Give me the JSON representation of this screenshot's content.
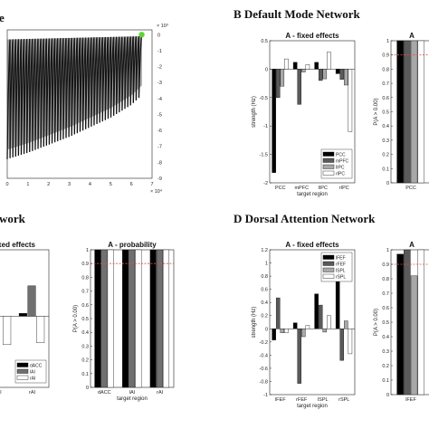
{
  "sections": {
    "A_tail": "e",
    "B": "B  Default Mode Network",
    "C_tail": "work",
    "D": "D  Dorsal Attention Network"
  },
  "chart_data": [
    {
      "id": "trace",
      "type": "line",
      "title": "",
      "x_multiplier": "× 10⁴",
      "y_multiplier": "× 10³",
      "xticks": [
        "0",
        "1",
        "2",
        "3",
        "4",
        "5",
        "6",
        "7"
      ],
      "yticks": [
        "0",
        "-1",
        "-2",
        "-3",
        "-4",
        "-5",
        "-6",
        "-7",
        "-8",
        "-9"
      ],
      "xlim": [
        0,
        7
      ],
      "ylim": [
        -9,
        0.3
      ],
      "upper_envelope": [
        [
          0,
          -0.3
        ],
        [
          6.5,
          -0.1
        ]
      ],
      "lower_envelope": [
        [
          0,
          -7.8
        ],
        [
          1,
          -7.4
        ],
        [
          2,
          -6.9
        ],
        [
          3,
          -6.4
        ],
        [
          4,
          -5.8
        ],
        [
          5,
          -5.2
        ],
        [
          6,
          -4.4
        ],
        [
          6.5,
          -3.8
        ]
      ],
      "oscillation_count": 48,
      "end_marker": {
        "x": 6.5,
        "y": 0.0,
        "color": "#5cd62e"
      }
    },
    {
      "id": "B_fixed",
      "type": "bar",
      "title": "A - fixed effects",
      "xlabel": "target region",
      "ylabel": "strength (Hz)",
      "categories": [
        "PCC",
        "mPFC",
        "lIPC",
        "rIPC"
      ],
      "ylim": [
        -2,
        0.5
      ],
      "yticks": [
        "0.5",
        "0",
        "-0.5",
        "-1",
        "-1.5",
        "-2"
      ],
      "series": [
        {
          "name": "PCC",
          "color": "#000000",
          "values": [
            -1.82,
            0.12,
            0.12,
            -0.08
          ]
        },
        {
          "name": "mPFC",
          "color": "#5a5a5a",
          "values": [
            -0.5,
            -0.62,
            -0.2,
            -0.18
          ]
        },
        {
          "name": "lIPC",
          "color": "#a8a8a8",
          "values": [
            -0.3,
            -0.05,
            -0.17,
            -0.28
          ]
        },
        {
          "name": "rIPC",
          "color": "#ffffff",
          "values": [
            0.18,
            0.08,
            0.3,
            -1.1
          ]
        }
      ],
      "legend_position": "bottom-right",
      "refline": 0
    },
    {
      "id": "B_prob",
      "type": "bar",
      "title": "A",
      "ylabel": "P(A > 0.00)",
      "categories": [
        "PCC"
      ],
      "ylim": [
        0,
        1
      ],
      "yticks": [
        "1",
        "0.9",
        "0.8",
        "0.7",
        "0.6",
        "0.5",
        "0.4",
        "0.3",
        "0.2",
        "0.1",
        "0"
      ],
      "series": [
        {
          "name": "PCC",
          "color": "#000000",
          "values": [
            1.0
          ]
        },
        {
          "name": "mPFC",
          "color": "#5a5a5a",
          "values": [
            1.0
          ]
        },
        {
          "name": "lIPC",
          "color": "#a8a8a8",
          "values": [
            1.0
          ]
        },
        {
          "name": "rIPC",
          "color": "#ffffff",
          "values": [
            1.0
          ]
        }
      ],
      "threshold": 0.9
    },
    {
      "id": "C_fixed",
      "type": "bar",
      "title": "ixed effects",
      "categories": [
        "lAI",
        "rAI"
      ],
      "ylim": [
        -0.75,
        0.7
      ],
      "series": [
        {
          "name": "dACC",
          "color": "#000000",
          "values": [
            null,
            0.03
          ]
        },
        {
          "name": "lAI",
          "color": "#707070",
          "values": [
            null,
            0.32
          ]
        },
        {
          "name": "rAI",
          "color": "#ffffff",
          "values": [
            -0.3,
            -0.28
          ]
        }
      ],
      "legend_position": "bottom-right"
    },
    {
      "id": "C_prob",
      "type": "bar",
      "title": "A - probability",
      "xlabel": "target region",
      "ylabel": "P(A > 0.00)",
      "categories": [
        "dACC",
        "lAI",
        "rAI"
      ],
      "ylim": [
        0,
        1
      ],
      "yticks": [
        "1",
        "0.9",
        "0.8",
        "0.7",
        "0.6",
        "0.5",
        "0.4",
        "0.3",
        "0.2",
        "0.1",
        "0"
      ],
      "series": [
        {
          "name": "dACC",
          "color": "#000000",
          "values": [
            1.0,
            1.0,
            1.0
          ]
        },
        {
          "name": "lAI",
          "color": "#707070",
          "values": [
            1.0,
            1.0,
            1.0
          ]
        },
        {
          "name": "rAI",
          "color": "#ffffff",
          "values": [
            1.0,
            1.0,
            1.0
          ]
        }
      ],
      "threshold": 0.9
    },
    {
      "id": "D_fixed",
      "type": "bar",
      "title": "A - fixed effects",
      "xlabel": "target region",
      "ylabel": "strength (Hz)",
      "categories": [
        "lFEF",
        "rFEF",
        "lSPL",
        "rSPL"
      ],
      "ylim": [
        -1,
        1.2
      ],
      "yticks": [
        "1.2",
        "1",
        "0.8",
        "0.6",
        "0.4",
        "0.2",
        "0",
        "-0.2",
        "-0.4",
        "-0.6",
        "-0.8",
        "-1"
      ],
      "series": [
        {
          "name": "lFEF",
          "color": "#000000",
          "values": [
            -0.17,
            0.09,
            0.53,
            1.03
          ]
        },
        {
          "name": "rFEF",
          "color": "#5a5a5a",
          "values": [
            0.47,
            -0.83,
            0.36,
            -0.48
          ]
        },
        {
          "name": "lSPL",
          "color": "#a8a8a8",
          "values": [
            -0.06,
            -0.12,
            -0.05,
            0.12
          ]
        },
        {
          "name": "rSPL",
          "color": "#ffffff",
          "values": [
            -0.06,
            0.05,
            0.2,
            -0.38
          ]
        }
      ],
      "legend_position": "top-right",
      "refline": 0
    },
    {
      "id": "D_prob",
      "type": "bar",
      "title": "A",
      "ylabel": "P(A > 0.00)",
      "categories": [
        "lFEF"
      ],
      "ylim": [
        0,
        1
      ],
      "yticks": [
        "1",
        "0.9",
        "0.8",
        "0.7",
        "0.6",
        "0.5",
        "0.4",
        "0.3",
        "0.2",
        "0.1",
        "0"
      ],
      "series": [
        {
          "name": "lFEF",
          "color": "#000000",
          "values": [
            0.97
          ]
        },
        {
          "name": "rFEF",
          "color": "#5a5a5a",
          "values": [
            1.0
          ]
        },
        {
          "name": "lSPL",
          "color": "#a8a8a8",
          "values": [
            0.82
          ]
        },
        {
          "name": "rSPL",
          "color": "#ffffff",
          "values": [
            1.0
          ]
        }
      ],
      "threshold": 0.9
    }
  ]
}
